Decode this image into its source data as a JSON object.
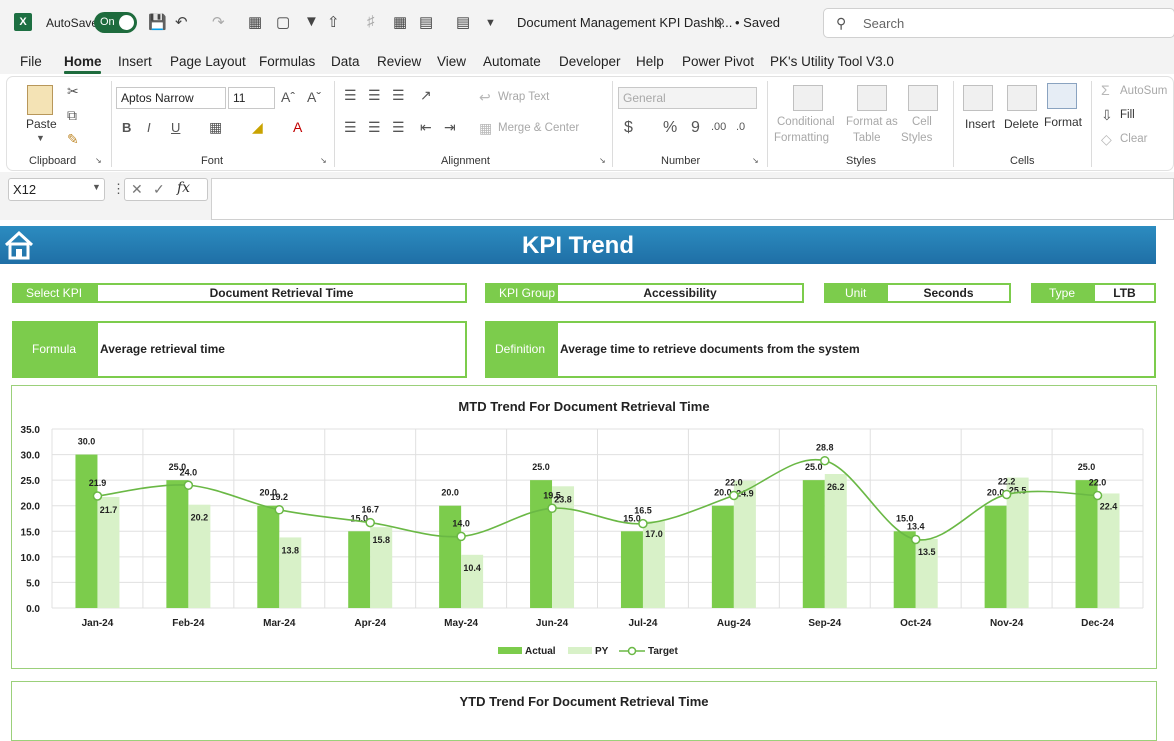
{
  "titlebar": {
    "autosave_label": "AutoSave",
    "toggle_label": "On",
    "doc_title": "Document Management KPI Dashb...",
    "saved": "• Saved",
    "search_placeholder": "Search"
  },
  "menu": [
    "File",
    "Home",
    "Insert",
    "Page Layout",
    "Formulas",
    "Data",
    "Review",
    "View",
    "Automate",
    "Developer",
    "Help",
    "Power Pivot",
    "PK's Utility Tool V3.0"
  ],
  "ribbon": {
    "clipboard": {
      "label": "Clipboard",
      "paste": "Paste"
    },
    "font": {
      "label": "Font",
      "family": "Aptos Narrow",
      "size": "11"
    },
    "alignment": {
      "label": "Alignment",
      "wrap": "Wrap Text",
      "merge": "Merge & Center"
    },
    "number": {
      "label": "Number",
      "format": "General"
    },
    "styles": {
      "label": "Styles",
      "conditional": "Conditional",
      "formatting": "Formatting",
      "format_as": "Format as",
      "table": "Table",
      "cell": "Cell",
      "styles": "Styles"
    },
    "cells": {
      "label": "Cells",
      "insert": "Insert",
      "delete": "Delete",
      "format": "Format"
    },
    "editing": {
      "autosum": "AutoSum",
      "fill": "Fill",
      "clear": "Clear"
    }
  },
  "formula_bar": {
    "name_box": "X12",
    "fx": "fx",
    "value": ""
  },
  "sheet": {
    "banner_title": "KPI Trend",
    "select_kpi_label": "Select KPI",
    "select_kpi_value": "Document Retrieval Time",
    "kpi_group_label": "KPI Group",
    "kpi_group_value": "Accessibility",
    "unit_label": "Unit",
    "unit_value": "Seconds",
    "type_label": "Type",
    "type_value": "LTB",
    "formula_label": "Formula",
    "formula_value": "Average retrieval time",
    "definition_label": "Definition",
    "definition_value": "Average time to retrieve documents from the system",
    "ytd_title": "YTD Trend For Document Retrieval Time"
  },
  "chart_data": {
    "type": "bar",
    "title": "MTD Trend For Document Retrieval Time",
    "categories": [
      "Jan-24",
      "Feb-24",
      "Mar-24",
      "Apr-24",
      "May-24",
      "Jun-24",
      "Jul-24",
      "Aug-24",
      "Sep-24",
      "Oct-24",
      "Nov-24",
      "Dec-24"
    ],
    "ylim": [
      0,
      35
    ],
    "yticks": [
      "0.0",
      "5.0",
      "10.0",
      "15.0",
      "20.0",
      "25.0",
      "30.0",
      "35.0"
    ],
    "legend_position": "bottom",
    "series": [
      {
        "name": "Actual",
        "type": "bar",
        "color": "#7ccc4c",
        "values": [
          30.0,
          25.0,
          20.0,
          15.0,
          20.0,
          25.0,
          15.0,
          20.0,
          25.0,
          15.0,
          20.0,
          25.0
        ]
      },
      {
        "name": "PY",
        "type": "bar",
        "color": "#d8f1c8",
        "values": [
          21.7,
          20.2,
          13.8,
          15.8,
          10.4,
          23.8,
          17.0,
          24.9,
          26.2,
          13.5,
          25.5,
          22.4
        ]
      },
      {
        "name": "Target",
        "type": "line",
        "color": "#6ab845",
        "values": [
          21.9,
          24.0,
          19.2,
          16.7,
          14.0,
          19.5,
          16.5,
          22.0,
          28.8,
          13.4,
          22.2,
          22.0
        ]
      }
    ]
  }
}
